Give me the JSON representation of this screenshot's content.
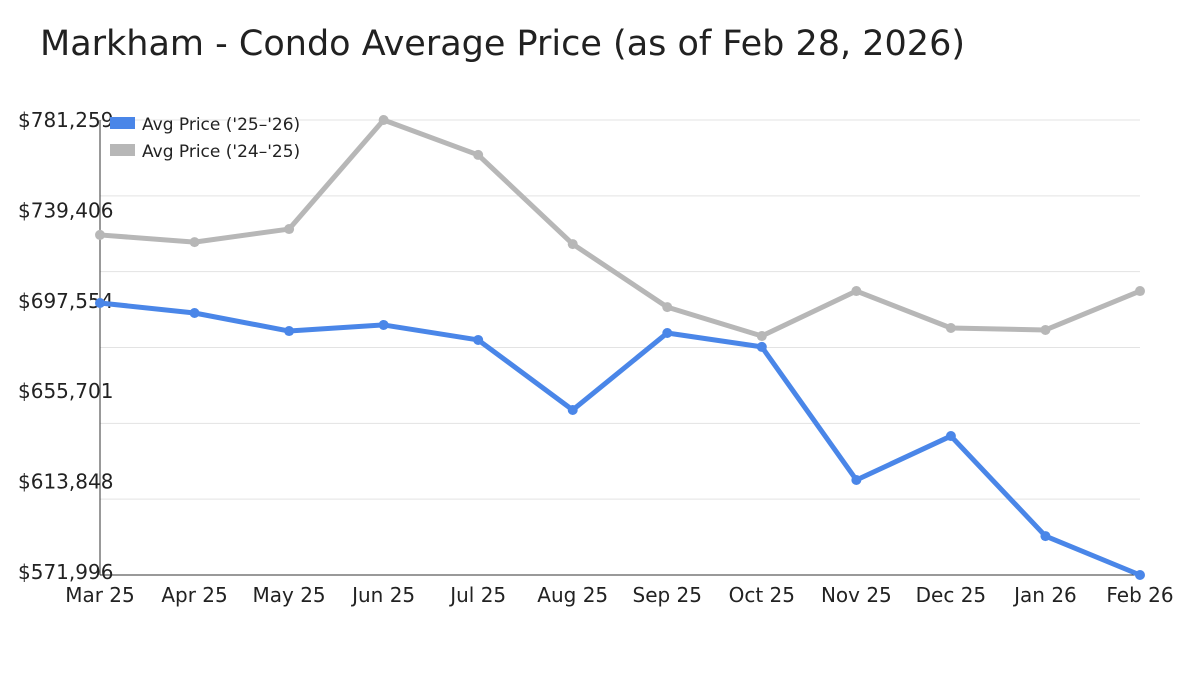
{
  "chart_data": {
    "type": "line",
    "title": "Markham - Condo Average Price (as of Feb 28, 2026)",
    "xlabel": "",
    "ylabel": "",
    "categories": [
      "Mar 25",
      "Apr 25",
      "May 25",
      "Jun 25",
      "Jul 25",
      "Aug 25",
      "Sep 25",
      "Oct 25",
      "Nov 25",
      "Dec 25",
      "Jan 26",
      "Feb 26"
    ],
    "ylim": [
      571996,
      781259
    ],
    "yticks": [
      "$571,996",
      "$613,848",
      "$655,701",
      "$697,554",
      "$739,406",
      "$781,259"
    ],
    "grid": true,
    "legend_position": "top-left",
    "series": [
      {
        "name": "Avg Price ('25–'26)",
        "color": "#4a86e8",
        "values": [
          697100,
          692500,
          684200,
          687000,
          680100,
          647900,
          683300,
          676900,
          615700,
          635900,
          589900,
          571996
        ]
      },
      {
        "name": "Avg Price ('24–'25)",
        "color": "#b7b7b7",
        "values": [
          728400,
          725100,
          731100,
          781259,
          765200,
          724200,
          695200,
          681900,
          702600,
          685600,
          684700,
          702600
        ]
      }
    ]
  }
}
